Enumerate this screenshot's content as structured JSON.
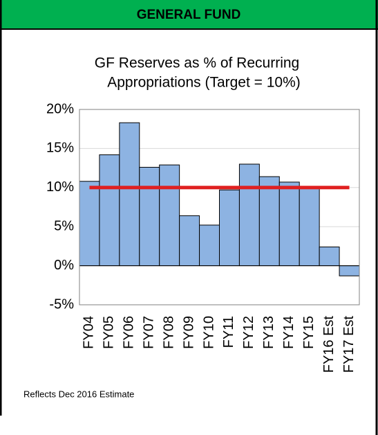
{
  "header": {
    "title": "GENERAL FUND"
  },
  "chart_data": {
    "type": "bar",
    "title": [
      "GF Reserves as % of Recurring",
      "Appropriations (Target = 10%)"
    ],
    "categories": [
      "FY04",
      "FY05",
      "FY06",
      "FY07",
      "FY08",
      "FY09",
      "FY10",
      "FY11",
      "FY12",
      "FY13",
      "FY14",
      "FY15",
      "FY16 Est",
      "FY17 Est"
    ],
    "values": [
      10.8,
      14.2,
      18.3,
      12.6,
      12.9,
      6.4,
      5.2,
      9.7,
      13.0,
      11.4,
      10.7,
      9.9,
      2.4,
      -1.3
    ],
    "color": "#8db3e2",
    "target": 10,
    "target_color": "#e02020",
    "ylim": [
      -5,
      20
    ],
    "yticks": [
      {
        "value": -5,
        "label": "-5%"
      },
      {
        "value": 0,
        "label": "0%"
      },
      {
        "value": 5,
        "label": "5%"
      },
      {
        "value": 10,
        "label": "10%"
      },
      {
        "value": 15,
        "label": "15%"
      },
      {
        "value": 20,
        "label": "20%"
      }
    ],
    "grid": true
  },
  "footnote": "Reflects Dec 2016 Estimate"
}
